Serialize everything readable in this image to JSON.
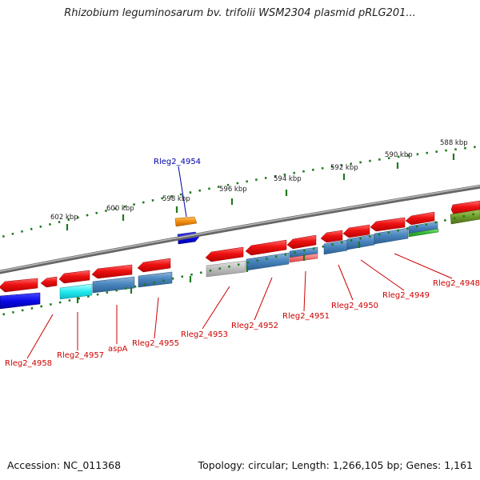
{
  "title": "Rhizobium leguminosarum bv. trifolii WSM2304 plasmid pRLG201...",
  "footer": {
    "accession": "Accession: NC_011368",
    "summary": "Topology: circular; Length: 1,266,105 bp; Genes: 1,161"
  },
  "colors": {
    "backbone": "#8a8a8a",
    "tick": "#1f7a1f",
    "label_red": "#cc0000",
    "label_blue": "#0000aa"
  },
  "position_labels": [
    "602 kbp",
    "600 kbp",
    "598 kbp",
    "596 kbp",
    "594 kbp",
    "592 kbp",
    "590 kbp",
    "588 kbp"
  ],
  "gene_labels": [
    {
      "text": "Rleg2_4954",
      "color": "blue"
    },
    {
      "text": "Rleg2_4958",
      "color": "red"
    },
    {
      "text": "Rleg2_4957",
      "color": "red"
    },
    {
      "text": "aspA",
      "color": "red"
    },
    {
      "text": "Rleg2_4955",
      "color": "red"
    },
    {
      "text": "Rleg2_4953",
      "color": "red"
    },
    {
      "text": "Rleg2_4952",
      "color": "red"
    },
    {
      "text": "Rleg2_4951",
      "color": "red"
    },
    {
      "text": "Rleg2_4950",
      "color": "red"
    },
    {
      "text": "Rleg2_4949",
      "color": "red"
    },
    {
      "text": "Rleg2_4948",
      "color": "red"
    }
  ]
}
